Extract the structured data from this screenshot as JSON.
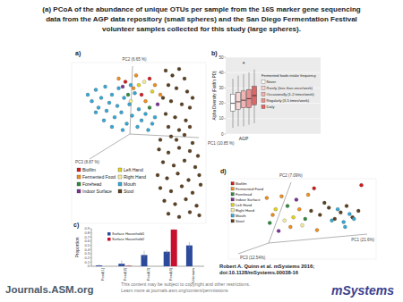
{
  "header": {
    "title_lines": [
      "(a) PCoA of the abundance of unique OTUs per sample from the 16S marker gene sequencing",
      "data from the AGP data repository (small spheres) and the San Diego Fermentation Festival",
      "volunteer samples collected for this study (large spheres)."
    ]
  },
  "footer": {
    "citation_lines": [
      "Robert A. Quinn et al. mSystems 2016;",
      "doi:10.1128/mSystems.00038-16"
    ],
    "copyright_lines": [
      "This content may be subject to copyright and other restrictions.",
      "Learn more at journals.asm.org/content/permissions"
    ],
    "logo_left": "Journals.ASM.org",
    "logo_right": "mSystems"
  },
  "chart_data": [
    {
      "type": "scatter",
      "panel_label": "a)",
      "x_label": "PC1 (10.85 %)",
      "y_label": "PC2 (6.65 %)",
      "z_label": "PC3 (8.87 %)",
      "xlim": [
        0,
        100
      ],
      "ylim": [
        0,
        100
      ],
      "tick_labels": false,
      "marker": "circle",
      "legend": "bottom left",
      "series": [
        {
          "name": "Biofilm",
          "color": "#d7191c",
          "x": [
            40,
            52,
            58
          ],
          "y": [
            88,
            80,
            90
          ]
        },
        {
          "name": "Fermented Food",
          "color": "#f28e1c",
          "x": [
            35,
            46,
            55,
            62,
            48,
            66
          ],
          "y": [
            90,
            84,
            76,
            86,
            92,
            80
          ]
        },
        {
          "name": "Forehead",
          "color": "#2e8b3e",
          "x": [
            42,
            58
          ],
          "y": [
            80,
            72
          ]
        },
        {
          "name": "Indoor Surface",
          "color": "#7b3294",
          "x": [
            38,
            64
          ],
          "y": [
            85,
            74
          ]
        },
        {
          "name": "Left Hand",
          "color": "#e6d31e",
          "x": [
            50,
            60
          ],
          "y": [
            86,
            82
          ]
        },
        {
          "name": "Right Hand",
          "color": "#f7ef99",
          "x": [
            44,
            54
          ],
          "y": [
            76,
            88
          ]
        },
        {
          "name": "Mouth",
          "color": "#35a9d6",
          "x": [
            12,
            15,
            18,
            20,
            22,
            25,
            26,
            28,
            30,
            32,
            34,
            35,
            37,
            39,
            41,
            43,
            45,
            47,
            49,
            50,
            52,
            55,
            57,
            60,
            62,
            18,
            24,
            30,
            38,
            44
          ],
          "y": [
            80,
            76,
            83,
            72,
            78,
            85,
            70,
            75,
            80,
            66,
            73,
            84,
            69,
            78,
            62,
            74,
            67,
            81,
            60,
            71,
            64,
            68,
            58,
            62,
            66,
            69,
            64,
            60,
            58,
            86
          ]
        },
        {
          "name": "Stool",
          "color": "#5c4020",
          "x": [
            70,
            75,
            80,
            84,
            72,
            78,
            86,
            68,
            74,
            82,
            88,
            70,
            77,
            85,
            72,
            80,
            88,
            90,
            84,
            78,
            66,
            74,
            90,
            65,
            72,
            80,
            88,
            94,
            68,
            76,
            84,
            92,
            64,
            71,
            79,
            87,
            95,
            66,
            74,
            82,
            90,
            96,
            69,
            77,
            85,
            93,
            72,
            80,
            88,
            95
          ],
          "y": [
            95,
            92,
            96,
            90,
            86,
            84,
            82,
            78,
            76,
            74,
            72,
            68,
            66,
            64,
            60,
            58,
            60,
            78,
            55,
            52,
            52,
            54,
            50,
            46,
            44,
            47,
            45,
            42,
            38,
            36,
            39,
            35,
            30,
            28,
            31,
            27,
            30,
            22,
            20,
            23,
            19,
            24,
            14,
            12,
            15,
            11,
            6,
            4,
            7,
            5
          ]
        }
      ]
    },
    {
      "type": "box",
      "panel_label": "b)",
      "y_label": "Alpha Diversity (Faith's PD)",
      "categories": [
        "AGP"
      ],
      "ylim": [
        0,
        50
      ],
      "yticks": [
        0,
        10,
        20,
        30,
        40,
        50
      ],
      "grid": true,
      "legend": "right",
      "legend_title": "Fermented foods intake frequency",
      "annotation": "*",
      "series": [
        {
          "name": "Never",
          "color": "#ffffff",
          "min": [
            4
          ],
          "q1": [
            15
          ],
          "median": [
            20
          ],
          "q3": [
            26
          ],
          "max": [
            36
          ]
        },
        {
          "name": "Rarely (less than once/week)",
          "color": "#f9d5d5",
          "min": [
            5
          ],
          "q1": [
            16
          ],
          "median": [
            21
          ],
          "q3": [
            27
          ],
          "max": [
            38
          ]
        },
        {
          "name": "Occasionally (1-2 times/week)",
          "color": "#f2b3b3",
          "min": [
            5
          ],
          "q1": [
            17
          ],
          "median": [
            22
          ],
          "q3": [
            28
          ],
          "max": [
            39
          ]
        },
        {
          "name": "Regularly (3-5 times/week)",
          "color": "#eb9090",
          "min": [
            6
          ],
          "q1": [
            17
          ],
          "median": [
            23
          ],
          "q3": [
            29
          ],
          "max": [
            40
          ]
        },
        {
          "name": "Daily",
          "color": "#e06666",
          "min": [
            7
          ],
          "q1": [
            19
          ],
          "median": [
            25
          ],
          "q3": [
            31
          ],
          "max": [
            42
          ]
        }
      ]
    },
    {
      "type": "bar",
      "panel_label": "c)",
      "y_label": "Proportion",
      "categories": [
        "Food(1)",
        "Food(2)",
        "Food(3)",
        "Food(4)",
        "Unknown"
      ],
      "ylim": [
        0,
        0.9
      ],
      "yticks": [
        0,
        0.1,
        0.2,
        0.3,
        0.4,
        0.5,
        0.6,
        0.7,
        0.8,
        0.9
      ],
      "legend": "top left",
      "series": [
        {
          "name": "Surface Household1",
          "color": "#2b4a9c",
          "values": [
            0.02,
            0.06,
            0.27,
            0.35,
            0.5
          ],
          "errors": [
            0.03,
            0.08,
            0.1,
            0.05,
            0.08
          ]
        },
        {
          "name": "Surface Household2",
          "color": "#c8102e",
          "values": [
            0.0,
            0.01,
            0.0,
            0.88,
            0.0
          ],
          "errors": [
            0,
            0.02,
            0,
            0.02,
            0
          ]
        }
      ]
    },
    {
      "type": "scatter",
      "panel_label": "d)",
      "x_label": "PC1 (21.6%)",
      "y_label": "PC2 (7.09%)",
      "z_label": "PC3 (12.54%)",
      "xlim": [
        0,
        100
      ],
      "ylim": [
        0,
        100
      ],
      "tick_labels": false,
      "marker": "circle",
      "legend": "top left",
      "series": [
        {
          "name": "Biofilm",
          "color": "#d7191c",
          "x": [
            90,
            58
          ],
          "y": [
            92,
            88
          ]
        },
        {
          "name": "Fermented Food",
          "color": "#f28e1c",
          "x": [
            26,
            30,
            36,
            42,
            48,
            54,
            60
          ],
          "y": [
            76,
            55,
            78,
            40,
            62,
            80,
            36
          ]
        },
        {
          "name": "Forehead",
          "color": "#2e8b3e",
          "x": [
            28,
            40,
            52
          ],
          "y": [
            45,
            66,
            50
          ]
        },
        {
          "name": "Indoor Surface",
          "color": "#7b3294",
          "x": [
            34,
            46
          ],
          "y": [
            35,
            74
          ]
        },
        {
          "name": "Left Hand",
          "color": "#e6d31e",
          "x": [
            32,
            44
          ],
          "y": [
            62,
            52
          ]
        },
        {
          "name": "Right Hand",
          "color": "#f7ef99",
          "x": [
            38,
            50
          ],
          "y": [
            48,
            42
          ]
        },
        {
          "name": "Mouth",
          "color": "#35a9d6",
          "x": [
            70,
            74,
            78,
            82,
            85,
            79
          ],
          "y": [
            48,
            62,
            46,
            56,
            50,
            40
          ]
        },
        {
          "name": "Stool",
          "color": "#5c4020",
          "x": [
            56,
            62,
            68,
            72,
            76,
            80,
            84,
            88,
            65
          ],
          "y": [
            60,
            55,
            64,
            50,
            58,
            66,
            52,
            60,
            70
          ]
        }
      ]
    }
  ]
}
